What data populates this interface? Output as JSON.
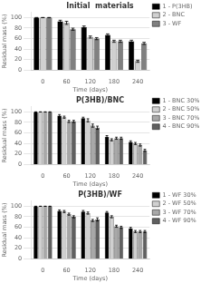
{
  "chart_data": [
    {
      "type": "bar",
      "title": "Initial  materials",
      "xlabel": "Time (days)",
      "ylabel": "Residual mass (%)",
      "categories": [
        "0",
        "60",
        "120",
        "180",
        "240"
      ],
      "series": [
        {
          "name": "1 - P(3HB)",
          "color": "#000000",
          "values": [
            100,
            93,
            82,
            67,
            55
          ],
          "errors": [
            0,
            2,
            2,
            2,
            2
          ]
        },
        {
          "name": "2 - BNC",
          "color": "#d0d0d0",
          "values": [
            100,
            90,
            63,
            55,
            17
          ],
          "errors": [
            0,
            3,
            2,
            2,
            2
          ]
        },
        {
          "name": "3 - WF",
          "color": "#808080",
          "values": [
            100,
            78,
            60,
            55,
            51
          ],
          "errors": [
            0,
            2,
            2,
            2,
            2
          ]
        }
      ],
      "ylim": [
        0,
        110
      ],
      "yticks": [
        0,
        20,
        40,
        60,
        80,
        100
      ],
      "grid": true,
      "legend": "upper right"
    },
    {
      "type": "bar",
      "title": "P(3HB)/BNC",
      "xlabel": "Time (days)",
      "ylabel": "Residual mass (%)",
      "categories": [
        "0",
        "60",
        "120",
        "180",
        "240"
      ],
      "series": [
        {
          "name": "1 - BNC 30%",
          "color": "#000000",
          "values": [
            100,
            93,
            88,
            53,
            43
          ],
          "errors": [
            0,
            2,
            2,
            2,
            2
          ]
        },
        {
          "name": "2 - BNC 50%",
          "color": "#d0d0d0",
          "values": [
            100,
            90,
            84,
            47,
            40
          ],
          "errors": [
            0,
            2,
            3,
            2,
            2
          ]
        },
        {
          "name": "3 - BNC 70%",
          "color": "#a8a8a8",
          "values": [
            100,
            82,
            74,
            50,
            37
          ],
          "errors": [
            0,
            2,
            3,
            2,
            2
          ]
        },
        {
          "name": "4 - BNC 90%",
          "color": "#606060",
          "values": [
            100,
            82,
            70,
            50,
            27
          ],
          "errors": [
            0,
            2,
            3,
            2,
            2
          ]
        }
      ],
      "ylim": [
        0,
        110
      ],
      "yticks": [
        0,
        20,
        40,
        60,
        80,
        100
      ],
      "grid": true,
      "legend": "upper right"
    },
    {
      "type": "bar",
      "title": "P(3HB)/WF",
      "xlabel": "Time (days)",
      "ylabel": "Residual mass (%)",
      "categories": [
        "0",
        "60",
        "120",
        "180",
        "240"
      ],
      "series": [
        {
          "name": "1 - WF 30%",
          "color": "#000000",
          "values": [
            100,
            91,
            90,
            88,
            58
          ],
          "errors": [
            0,
            2,
            2,
            2,
            2
          ]
        },
        {
          "name": "2 - WF 50%",
          "color": "#d0d0d0",
          "values": [
            100,
            90,
            87,
            80,
            52
          ],
          "errors": [
            0,
            2,
            2,
            2,
            2
          ]
        },
        {
          "name": "3 - WF 70%",
          "color": "#a8a8a8",
          "values": [
            100,
            85,
            73,
            62,
            52
          ],
          "errors": [
            0,
            2,
            2,
            2,
            2
          ]
        },
        {
          "name": "4 - WF 90%",
          "color": "#606060",
          "values": [
            100,
            80,
            75,
            60,
            52
          ],
          "errors": [
            0,
            2,
            3,
            2,
            2
          ]
        }
      ],
      "ylim": [
        0,
        110
      ],
      "yticks": [
        0,
        20,
        40,
        60,
        80,
        100
      ],
      "grid": true,
      "legend": "upper right"
    }
  ]
}
